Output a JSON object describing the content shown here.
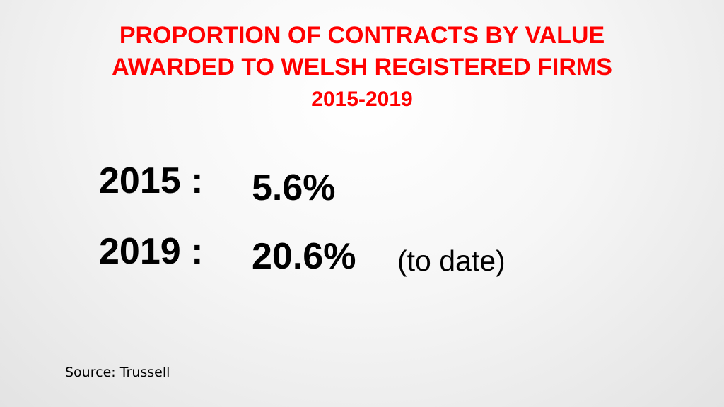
{
  "title": {
    "line1": "PROPORTION OF CONTRACTS BY VALUE",
    "line2": "AWARDED TO WELSH REGISTERED FIRMS",
    "line3": "2015-2019"
  },
  "rows": [
    {
      "year_label": "2015 :",
      "value": "5.6%",
      "note": ""
    },
    {
      "year_label": "2019 :",
      "value": "20.6%",
      "note": "(to date)"
    }
  ],
  "source": "Source: Trussell",
  "colors": {
    "title": "#ff0000",
    "text": "#000000"
  }
}
